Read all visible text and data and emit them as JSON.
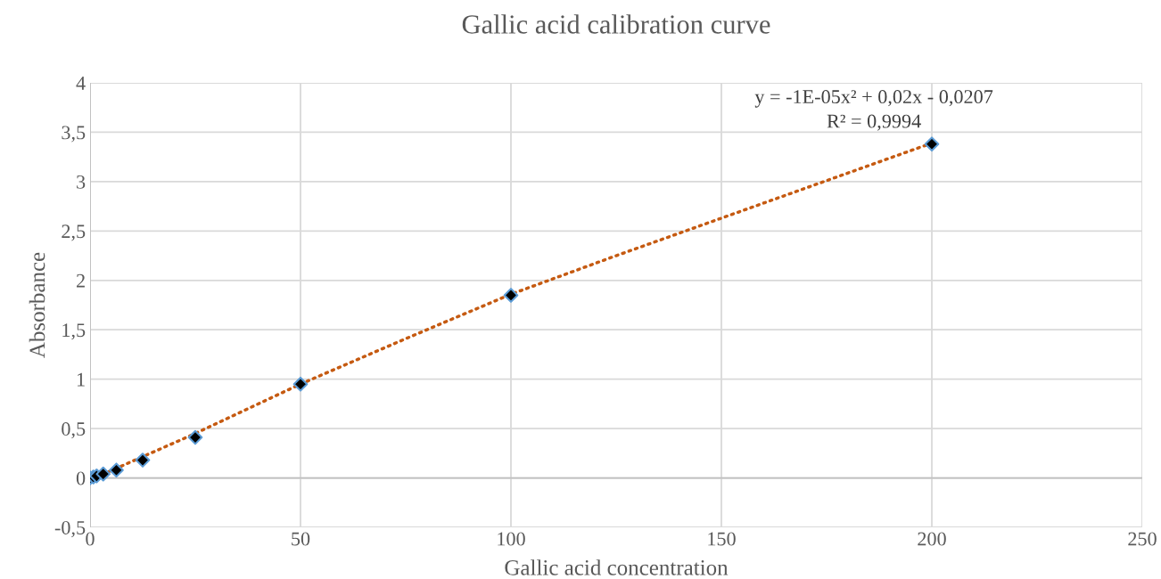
{
  "chart_data": {
    "type": "scatter",
    "title": "Gallic acid calibration curve",
    "xlabel": "Gallic acid concentration",
    "ylabel": "Absorbance",
    "xlim": [
      0,
      250
    ],
    "xticks": [
      0,
      50,
      100,
      150,
      200,
      250
    ],
    "ylim": [
      -0.5,
      4
    ],
    "yticks": [
      {
        "value": -0.5,
        "label": "-0,5"
      },
      0,
      {
        "value": 0.5,
        "label": "0,5"
      },
      1,
      {
        "value": 1.5,
        "label": "1,5"
      },
      2,
      {
        "value": 2.5,
        "label": "2,5"
      },
      3,
      {
        "value": 3.5,
        "label": "3,5"
      },
      4
    ],
    "grid": true,
    "legend": false,
    "series": [
      {
        "type": "line",
        "color": "#c55a11",
        "line_style": "dotted",
        "marker": "none",
        "x": [
          0,
          25,
          50,
          75,
          100,
          125,
          150,
          175,
          200
        ],
        "values": [
          -0.02,
          0.45,
          0.95,
          1.41,
          1.86,
          2.25,
          2.63,
          3.01,
          3.39
        ]
      },
      {
        "color": "#000000",
        "marker": "diamond",
        "x": [
          0,
          0.78,
          1.56,
          3.125,
          6.25,
          12.5,
          25,
          50,
          100,
          200
        ],
        "values": [
          0,
          0.01,
          0.02,
          0.04,
          0.08,
          0.18,
          0.41,
          0.95,
          1.85,
          3.38
        ]
      }
    ],
    "annotations": [
      "y = -1E-05x² + 0,02x - 0,0207",
      "R² = 0,9994"
    ]
  }
}
